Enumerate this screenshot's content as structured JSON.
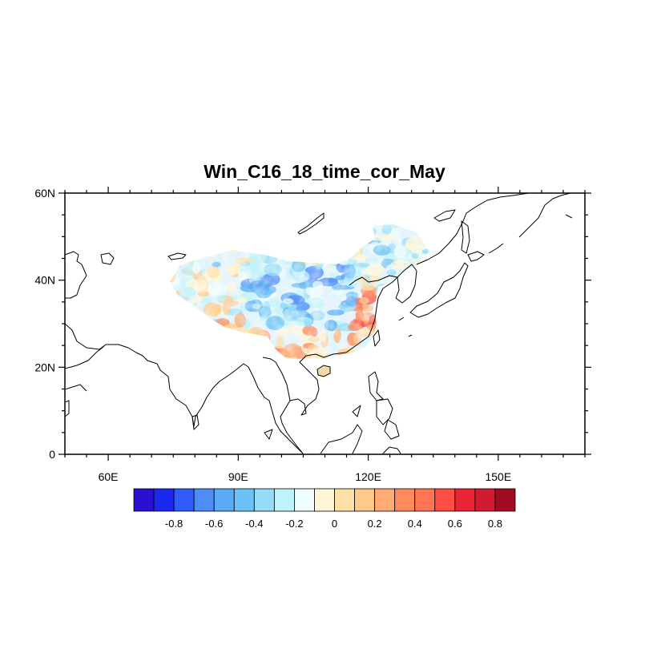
{
  "title": "Win_C16_18_time_cor_May",
  "map": {
    "lon_range": [
      50,
      170
    ],
    "lat_range": [
      0,
      60
    ],
    "lat_tick_labels": [
      {
        "value": 0,
        "label": "0"
      },
      {
        "value": 20,
        "label": "20N"
      },
      {
        "value": 40,
        "label": "40N"
      },
      {
        "value": 60,
        "label": "60N"
      }
    ],
    "lon_tick_labels": [
      {
        "value": 60,
        "label": "60E"
      },
      {
        "value": 90,
        "label": "90E"
      },
      {
        "value": 120,
        "label": "120E"
      },
      {
        "value": 150,
        "label": "150E"
      }
    ],
    "field_region": "China",
    "field_range": [
      -1,
      1
    ]
  },
  "colorbar": {
    "colors": [
      "#2a10d0",
      "#1a28f0",
      "#2f5cf8",
      "#4e8cf8",
      "#5aabf5",
      "#6cc2f6",
      "#95dcf8",
      "#bff3fb",
      "#eefdfd",
      "#fff6d8",
      "#ffe0a6",
      "#ffc98c",
      "#ffac74",
      "#ff8a5a",
      "#ff7452",
      "#ff4e44",
      "#ea2434",
      "#d01c30",
      "#a00a22"
    ],
    "labels": [
      "-0.8",
      "-0.6",
      "-0.4",
      "-0.2",
      "0",
      "0.2",
      "0.4",
      "0.6",
      "0.8"
    ]
  }
}
